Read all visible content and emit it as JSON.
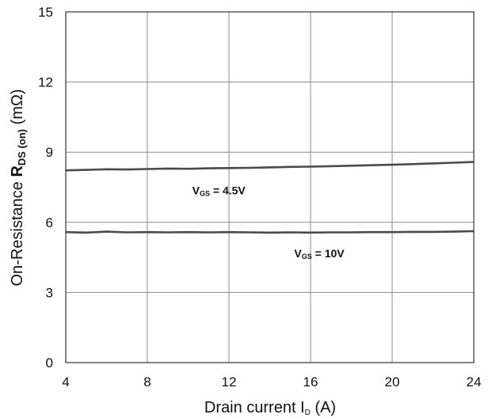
{
  "chart_data": {
    "type": "line",
    "xlabel": {
      "prefix": "Drain current I",
      "sub": "D",
      "suffix": " (A)"
    },
    "ylabel": {
      "prefix": "On-Resistance ",
      "main": "R",
      "sub": "DS (on)",
      "suffix": " (mΩ)"
    },
    "xlim": [
      4,
      24
    ],
    "ylim": [
      0,
      15
    ],
    "xticks": [
      "4",
      "8",
      "12",
      "16",
      "20",
      "24"
    ],
    "yticks": [
      "0",
      "3",
      "6",
      "9",
      "12",
      "15"
    ],
    "grid": true,
    "series": [
      {
        "x": [
          4,
          5,
          6,
          7,
          8,
          9,
          10,
          11,
          12,
          13,
          14,
          15,
          16,
          17,
          18,
          19,
          20,
          21,
          22,
          23,
          24
        ],
        "values": [
          8.22,
          8.24,
          8.27,
          8.26,
          8.28,
          8.3,
          8.29,
          8.31,
          8.32,
          8.33,
          8.35,
          8.37,
          8.38,
          8.4,
          8.42,
          8.44,
          8.46,
          8.49,
          8.52,
          8.55,
          8.58
        ],
        "color": "#4a4a4a"
      },
      {
        "x": [
          4,
          5,
          6,
          7,
          8,
          9,
          10,
          11,
          12,
          13,
          14,
          15,
          16,
          17,
          18,
          19,
          20,
          21,
          22,
          23,
          24
        ],
        "values": [
          5.58,
          5.56,
          5.6,
          5.57,
          5.58,
          5.57,
          5.58,
          5.57,
          5.58,
          5.57,
          5.56,
          5.57,
          5.56,
          5.57,
          5.57,
          5.58,
          5.58,
          5.59,
          5.59,
          5.6,
          5.62
        ],
        "color": "#4a4a4a"
      }
    ],
    "annotations": [
      {
        "main": "V",
        "sub": "GS",
        "suffix": " = 4.5V",
        "x": 10.2,
        "y": 7.2
      },
      {
        "main": "V",
        "sub": "GS",
        "suffix": " = 10V",
        "x": 15.2,
        "y": 4.5
      }
    ]
  }
}
